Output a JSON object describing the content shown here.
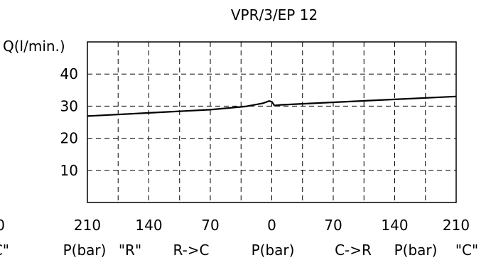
{
  "chart_data": {
    "type": "line",
    "title": "VPR/3/EP 12",
    "ylabel": "Q(l/min.)",
    "ylim": [
      0,
      50
    ],
    "y_ticks": [
      10,
      20,
      30,
      40
    ],
    "xlim": [
      -210,
      210
    ],
    "x_ticks": [
      -210,
      -140,
      -70,
      0,
      70,
      140,
      210
    ],
    "x_tick_labels": [
      "210",
      "140",
      "70",
      "0",
      "70",
      "140",
      "210"
    ],
    "left_cut_tick_label": "0",
    "bottom_labels": [
      "P(bar)",
      "\"R\"",
      "R->C",
      "P(bar)",
      "C->R",
      "P(bar)",
      "\"C\""
    ],
    "left_cut_bottom_label": "C\"",
    "grid": true,
    "series": [
      {
        "x": [
          -210,
          -140,
          -70,
          -30,
          -10,
          -3,
          0,
          3,
          10,
          70,
          140,
          210
        ],
        "y": [
          26.9,
          27.9,
          28.9,
          29.9,
          30.9,
          31.6,
          31.4,
          30.2,
          30.4,
          31.2,
          32.1,
          33.0
        ]
      }
    ]
  }
}
